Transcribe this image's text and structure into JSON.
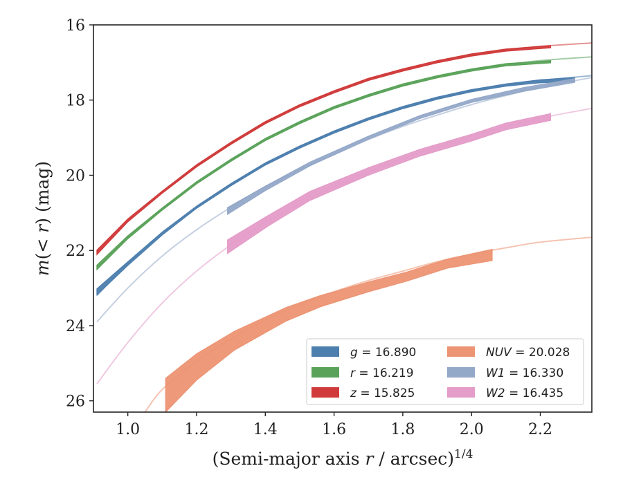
{
  "chart_data": {
    "type": "line",
    "title": "",
    "xlabel": "(Semi-major axis r / arcsec)",
    "xlabel_italic_part": "r",
    "xlabel_pre": "(Semi-major axis ",
    "xlabel_post": " / arcsec)",
    "xlabel_exponent": "1/4",
    "ylabel_pre": "m",
    "ylabel_mid": "(< ",
    "ylabel_r": "r",
    "ylabel_post": ") (mag)",
    "xlim": [
      0.9,
      2.35
    ],
    "ylim": [
      26.3,
      16.0
    ],
    "y_inverted": true,
    "xticks": [
      "1.0",
      "1.2",
      "1.4",
      "1.6",
      "1.8",
      "2.0",
      "2.2"
    ],
    "xtick_values": [
      1.0,
      1.2,
      1.4,
      1.6,
      1.8,
      2.0,
      2.2
    ],
    "yticks": [
      "16",
      "18",
      "20",
      "22",
      "24",
      "26"
    ],
    "ytick_values": [
      16,
      18,
      20,
      22,
      24,
      26
    ],
    "legend_position": "lower-right",
    "legend_columns": 2,
    "series": [
      {
        "key": "g",
        "legend_symbol": "g",
        "legend_value": "= 16.890",
        "color": "#4c7eae",
        "model_x": [
          0.91,
          1.0,
          1.1,
          1.2,
          1.3,
          1.4,
          1.5,
          1.6,
          1.7,
          1.8,
          1.9,
          2.0,
          2.1,
          2.2,
          2.35
        ],
        "model_y": [
          23.2,
          22.35,
          21.55,
          20.85,
          20.25,
          19.7,
          19.25,
          18.85,
          18.5,
          18.2,
          17.95,
          17.75,
          17.6,
          17.48,
          17.35
        ],
        "data_x": [
          0.91,
          1.0,
          1.1,
          1.2,
          1.3,
          1.4,
          1.5,
          1.6,
          1.7,
          1.8,
          1.9,
          2.0,
          2.1,
          2.2,
          2.3
        ],
        "data_y": [
          23.1,
          22.35,
          21.55,
          20.85,
          20.25,
          19.7,
          19.25,
          18.85,
          18.5,
          18.2,
          17.95,
          17.75,
          17.6,
          17.5,
          17.45
        ],
        "data_err": [
          0.08,
          0.05,
          0.04,
          0.03,
          0.03,
          0.03,
          0.03,
          0.03,
          0.03,
          0.03,
          0.03,
          0.03,
          0.03,
          0.04,
          0.05
        ]
      },
      {
        "key": "r",
        "legend_symbol": "r",
        "legend_value": "= 16.219",
        "color": "#5aa25a",
        "model_x": [
          0.91,
          1.0,
          1.1,
          1.2,
          1.3,
          1.4,
          1.5,
          1.6,
          1.7,
          1.8,
          1.9,
          2.0,
          2.1,
          2.2,
          2.35
        ],
        "model_y": [
          22.5,
          21.65,
          20.9,
          20.2,
          19.6,
          19.05,
          18.6,
          18.2,
          17.88,
          17.6,
          17.38,
          17.2,
          17.06,
          16.95,
          16.85
        ],
        "data_x": [
          0.91,
          1.0,
          1.1,
          1.2,
          1.3,
          1.4,
          1.5,
          1.6,
          1.7,
          1.8,
          1.9,
          2.0,
          2.1,
          2.23
        ],
        "data_y": [
          22.45,
          21.65,
          20.9,
          20.2,
          19.6,
          19.05,
          18.6,
          18.2,
          17.88,
          17.6,
          17.38,
          17.2,
          17.06,
          16.98
        ],
        "data_err": [
          0.06,
          0.04,
          0.03,
          0.03,
          0.03,
          0.03,
          0.03,
          0.03,
          0.03,
          0.03,
          0.03,
          0.03,
          0.03,
          0.03
        ]
      },
      {
        "key": "z",
        "legend_symbol": "z",
        "legend_value": "= 15.825",
        "color": "#d03a3a",
        "model_x": [
          0.91,
          1.0,
          1.1,
          1.2,
          1.3,
          1.4,
          1.5,
          1.6,
          1.7,
          1.8,
          1.9,
          2.0,
          2.1,
          2.2,
          2.35
        ],
        "model_y": [
          22.05,
          21.2,
          20.45,
          19.75,
          19.15,
          18.6,
          18.15,
          17.78,
          17.45,
          17.2,
          16.98,
          16.8,
          16.67,
          16.57,
          16.48
        ],
        "data_x": [
          0.91,
          1.0,
          1.1,
          1.2,
          1.3,
          1.4,
          1.5,
          1.6,
          1.7,
          1.8,
          1.9,
          2.0,
          2.1,
          2.23
        ],
        "data_y": [
          22.05,
          21.2,
          20.45,
          19.75,
          19.15,
          18.6,
          18.15,
          17.78,
          17.45,
          17.2,
          16.98,
          16.8,
          16.67,
          16.58
        ],
        "data_err": [
          0.06,
          0.04,
          0.03,
          0.03,
          0.03,
          0.03,
          0.03,
          0.03,
          0.03,
          0.03,
          0.03,
          0.03,
          0.03,
          0.03
        ]
      },
      {
        "key": "NUV",
        "legend_symbol": "NUV",
        "legend_value": "= 20.028",
        "color": "#ec9473",
        "model_x": [
          1.05,
          1.1,
          1.2,
          1.3,
          1.4,
          1.5,
          1.6,
          1.7,
          1.8,
          1.9,
          2.0,
          2.1,
          2.2,
          2.35
        ],
        "model_y": [
          26.3,
          25.7,
          24.95,
          24.35,
          23.85,
          23.45,
          23.1,
          22.8,
          22.55,
          22.3,
          22.1,
          21.93,
          21.78,
          21.65
        ],
        "data_x": [
          1.11,
          1.2,
          1.31,
          1.46,
          1.56,
          1.7,
          1.81,
          1.93,
          2.06
        ],
        "data_y": [
          25.85,
          25.1,
          24.4,
          23.7,
          23.35,
          22.97,
          22.7,
          22.35,
          22.12
        ],
        "data_err": [
          0.45,
          0.35,
          0.25,
          0.18,
          0.15,
          0.13,
          0.12,
          0.12,
          0.15
        ]
      },
      {
        "key": "W1",
        "legend_symbol": "W1",
        "legend_value": "= 16.330",
        "color": "#94a8c8",
        "model_x": [
          0.91,
          1.0,
          1.1,
          1.2,
          1.3,
          1.4,
          1.5,
          1.6,
          1.7,
          1.8,
          1.9,
          2.0,
          2.1,
          2.2,
          2.35
        ],
        "model_y": [
          23.9,
          23.0,
          22.15,
          21.45,
          20.85,
          20.3,
          19.85,
          19.45,
          19.05,
          18.7,
          18.4,
          18.12,
          17.88,
          17.66,
          17.4
        ],
        "data_x": [
          1.29,
          1.4,
          1.53,
          1.7,
          1.85,
          2.0,
          2.15,
          2.3
        ],
        "data_y": [
          20.95,
          20.35,
          19.7,
          19.0,
          18.45,
          18.02,
          17.72,
          17.48
        ],
        "data_err": [
          0.09,
          0.06,
          0.05,
          0.04,
          0.04,
          0.04,
          0.05,
          0.05
        ]
      },
      {
        "key": "W2",
        "legend_symbol": "W2",
        "legend_value": "= 16.435",
        "color": "#e49cc8",
        "model_x": [
          0.91,
          1.0,
          1.1,
          1.2,
          1.3,
          1.4,
          1.5,
          1.6,
          1.7,
          1.8,
          1.9,
          2.0,
          2.1,
          2.2,
          2.35
        ],
        "model_y": [
          25.55,
          24.45,
          23.4,
          22.55,
          21.85,
          21.25,
          20.75,
          20.3,
          19.9,
          19.55,
          19.25,
          18.95,
          18.7,
          18.48,
          18.22
        ],
        "data_x": [
          1.29,
          1.41,
          1.53,
          1.7,
          1.85,
          2.0,
          2.1,
          2.23
        ],
        "data_y": [
          21.9,
          21.2,
          20.55,
          19.9,
          19.4,
          19.0,
          18.7,
          18.45
        ],
        "data_err": [
          0.18,
          0.14,
          0.12,
          0.1,
          0.09,
          0.09,
          0.09,
          0.09
        ]
      }
    ]
  }
}
